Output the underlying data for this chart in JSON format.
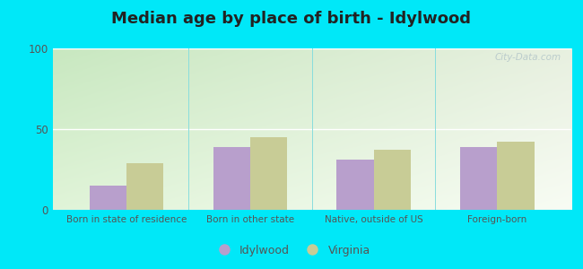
{
  "title": "Median age by place of birth - Idylwood",
  "categories": [
    "Born in state of residence",
    "Born in other state",
    "Native, outside of US",
    "Foreign-born"
  ],
  "idylwood_values": [
    15,
    39,
    31,
    39
  ],
  "virginia_values": [
    29,
    45,
    37,
    42
  ],
  "idylwood_color": "#b89fcc",
  "virginia_color": "#c8cc96",
  "ylim": [
    0,
    100
  ],
  "yticks": [
    0,
    50,
    100
  ],
  "bg_color_top": "#c8e8c0",
  "bg_color_bottom": "#f0f8e8",
  "outer_bg": "#00e8f8",
  "legend_idylwood": "Idylwood",
  "legend_virginia": "Virginia",
  "title_fontsize": 13,
  "bar_width": 0.3,
  "watermark": "City-Data.com"
}
